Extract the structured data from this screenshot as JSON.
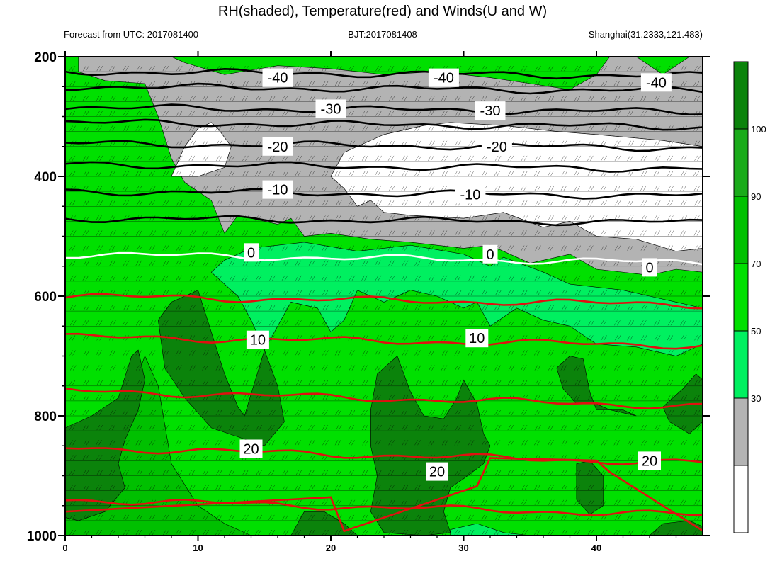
{
  "chart_data": {
    "type": "heatmap",
    "title": "RH(shaded), Temperature(red) and Winds(U and W)",
    "subtitle_left": "Forecast from UTC: 2017081400",
    "subtitle_center": "BJT:2017081408",
    "subtitle_right": "Shanghai(31.2333,121.483)",
    "x_range": [
      0,
      48
    ],
    "x_ticks": [
      0,
      10,
      20,
      30,
      40
    ],
    "y_range": [
      200,
      1000
    ],
    "y_ticks": [
      200,
      400,
      600,
      800,
      1000
    ],
    "y_inverted": true,
    "colorbar": {
      "ticks": [
        30,
        50,
        70,
        90,
        100
      ],
      "colors": [
        "#ffffff",
        "#b3b3b3",
        "#00f060",
        "#00e000",
        "#00c000",
        "#1aab1a",
        "#0b830b"
      ],
      "placement": "right"
    },
    "isotherm_colors": {
      "cold": "#000000",
      "zero": "#ffffff",
      "warm": "#e01010"
    },
    "isotherms": [
      {
        "value": -40,
        "label": "-40",
        "pressure": 225,
        "show_label": true
      },
      {
        "value": -35,
        "label": "",
        "pressure": 250,
        "show_label": false
      },
      {
        "value": -30,
        "label": "-30",
        "pressure": 285,
        "show_label": true
      },
      {
        "value": -25,
        "label": "",
        "pressure": 310,
        "show_label": false
      },
      {
        "value": -20,
        "label": "-20",
        "pressure": 345,
        "show_label": true
      },
      {
        "value": -15,
        "label": "",
        "pressure": 380,
        "show_label": false
      },
      {
        "value": -10,
        "label": "-10",
        "pressure": 425,
        "show_label": true
      },
      {
        "value": -5,
        "label": "",
        "pressure": 470,
        "show_label": false
      },
      {
        "value": 0,
        "label": "0",
        "pressure": 530,
        "show_label": true
      },
      {
        "value": 5,
        "label": "",
        "pressure": 600,
        "show_label": false
      },
      {
        "value": 10,
        "label": "10",
        "pressure": 668,
        "show_label": true
      },
      {
        "value": 15,
        "label": "",
        "pressure": 758,
        "show_label": false
      },
      {
        "value": 20,
        "label": "20",
        "pressure": 853,
        "show_label": true
      },
      {
        "value": 25,
        "label": "",
        "pressure": 940,
        "show_label": false
      }
    ],
    "contour_labels": [
      {
        "text": "-40",
        "x": 16,
        "p": 235
      },
      {
        "text": "-40",
        "x": 28.5,
        "p": 235
      },
      {
        "text": "-40",
        "x": 44.5,
        "p": 243
      },
      {
        "text": "-30",
        "x": 20,
        "p": 287
      },
      {
        "text": "-30",
        "x": 32,
        "p": 290
      },
      {
        "text": "-20",
        "x": 16,
        "p": 350
      },
      {
        "text": "-20",
        "x": 32.5,
        "p": 350
      },
      {
        "text": "-10",
        "x": 16,
        "p": 422
      },
      {
        "text": "-10",
        "x": 30.5,
        "p": 430
      },
      {
        "text": "0",
        "x": 14,
        "p": 527
      },
      {
        "text": "0",
        "x": 32,
        "p": 530
      },
      {
        "text": "0",
        "x": 44,
        "p": 552
      },
      {
        "text": "10",
        "x": 14.5,
        "p": 673
      },
      {
        "text": "10",
        "x": 31,
        "p": 670
      },
      {
        "text": "20",
        "x": 14,
        "p": 855
      },
      {
        "text": "20",
        "x": 28,
        "p": 893
      },
      {
        "text": "20",
        "x": 44,
        "p": 875
      }
    ],
    "rh_regions": [
      {
        "class": "lt30",
        "points": [
          [
            11,
            310
          ],
          [
            11.5,
            320
          ],
          [
            12.5,
            350
          ],
          [
            12,
            385
          ],
          [
            10,
            400
          ],
          [
            8,
            400
          ],
          [
            9,
            350
          ],
          [
            10,
            320
          ]
        ]
      },
      {
        "class": "lt30",
        "points": [
          [
            29,
            310
          ],
          [
            33,
            315
          ],
          [
            37,
            325
          ],
          [
            40,
            330
          ],
          [
            45,
            340
          ],
          [
            48,
            350
          ],
          [
            48,
            520
          ],
          [
            46,
            525
          ],
          [
            43,
            505
          ],
          [
            40,
            500
          ],
          [
            38,
            475
          ],
          [
            36,
            485
          ],
          [
            33,
            460
          ],
          [
            30,
            470
          ],
          [
            26,
            465
          ],
          [
            24,
            460
          ],
          [
            23,
            440
          ],
          [
            22,
            450
          ],
          [
            21,
            420
          ],
          [
            20,
            400
          ],
          [
            21,
            360
          ],
          [
            24,
            330
          ],
          [
            27,
            315
          ]
        ]
      },
      {
        "class": "lt50",
        "points": [
          [
            1,
            200
          ],
          [
            8,
            200
          ],
          [
            9,
            210
          ],
          [
            12,
            230
          ],
          [
            16,
            215
          ],
          [
            20,
            220
          ],
          [
            24,
            230
          ],
          [
            28,
            225
          ],
          [
            32,
            235
          ],
          [
            35,
            245
          ],
          [
            38,
            255
          ],
          [
            40,
            230
          ],
          [
            41,
            200
          ],
          [
            43,
            200
          ],
          [
            45,
            230
          ],
          [
            47,
            200
          ],
          [
            48,
            200
          ],
          [
            48,
            560
          ],
          [
            46,
            555
          ],
          [
            44,
            565
          ],
          [
            40,
            555
          ],
          [
            38,
            530
          ],
          [
            35,
            545
          ],
          [
            32,
            515
          ],
          [
            30,
            520
          ],
          [
            26,
            510
          ],
          [
            23,
            505
          ],
          [
            20,
            495
          ],
          [
            18,
            500
          ],
          [
            17,
            470
          ],
          [
            16,
            480
          ],
          [
            13,
            465
          ],
          [
            12,
            495
          ],
          [
            11,
            440
          ],
          [
            9,
            410
          ],
          [
            8,
            370
          ],
          [
            7,
            300
          ],
          [
            6,
            245
          ],
          [
            3,
            240
          ],
          [
            1,
            225
          ]
        ]
      },
      {
        "class": "lt70",
        "points": [
          [
            14,
            520
          ],
          [
            18,
            510
          ],
          [
            22,
            525
          ],
          [
            26,
            515
          ],
          [
            30,
            530
          ],
          [
            32,
            550
          ],
          [
            33,
            535
          ],
          [
            36,
            560
          ],
          [
            38,
            580
          ],
          [
            42,
            590
          ],
          [
            44,
            600
          ],
          [
            46,
            610
          ],
          [
            48,
            620
          ],
          [
            48,
            680
          ],
          [
            46,
            700
          ],
          [
            43,
            685
          ],
          [
            40,
            680
          ],
          [
            38,
            650
          ],
          [
            36,
            640
          ],
          [
            34,
            620
          ],
          [
            32,
            650
          ],
          [
            31,
            610
          ],
          [
            30,
            620
          ],
          [
            28,
            600
          ],
          [
            26,
            590
          ],
          [
            24,
            610
          ],
          [
            22,
            590
          ],
          [
            21,
            640
          ],
          [
            20,
            660
          ],
          [
            19,
            620
          ],
          [
            17,
            610
          ],
          [
            16,
            650
          ],
          [
            15,
            690
          ],
          [
            14,
            640
          ],
          [
            13,
            600
          ],
          [
            12,
            580
          ],
          [
            11,
            560
          ],
          [
            12,
            540
          ]
        ]
      },
      {
        "class": "lt70",
        "points": [
          [
            29,
            990
          ],
          [
            31,
            980
          ],
          [
            33,
            995
          ],
          [
            35,
            1000
          ],
          [
            29,
            1000
          ]
        ]
      },
      {
        "class": "lt90",
        "points": [
          [
            0,
            200
          ],
          [
            48,
            200
          ],
          [
            48,
            1000
          ],
          [
            0,
            1000
          ]
        ]
      },
      {
        "class": "lt100",
        "points": [
          [
            0,
            840
          ],
          [
            3,
            820
          ],
          [
            5,
            760
          ],
          [
            6,
            700
          ],
          [
            7,
            750
          ],
          [
            8,
            880
          ],
          [
            10,
            950
          ],
          [
            12,
            980
          ],
          [
            14,
            1000
          ],
          [
            0,
            1000
          ]
        ]
      },
      {
        "class": "gt100",
        "points": [
          [
            7,
            640
          ],
          [
            8,
            610
          ],
          [
            10,
            590
          ],
          [
            11,
            660
          ],
          [
            12,
            730
          ],
          [
            13,
            785
          ],
          [
            13.5,
            800
          ],
          [
            15,
            690
          ],
          [
            16,
            750
          ],
          [
            16.5,
            810
          ],
          [
            15,
            850
          ],
          [
            13,
            835
          ],
          [
            11,
            820
          ],
          [
            9,
            770
          ],
          [
            7.5,
            720
          ]
        ]
      },
      {
        "class": "gt100",
        "points": [
          [
            0,
            820
          ],
          [
            2,
            800
          ],
          [
            4,
            770
          ],
          [
            5,
            700
          ],
          [
            5.5,
            690
          ],
          [
            6,
            740
          ],
          [
            5.5,
            790
          ],
          [
            4.5,
            840
          ],
          [
            4,
            880
          ],
          [
            4.5,
            920
          ],
          [
            3,
            960
          ],
          [
            1,
            975
          ],
          [
            0,
            970
          ]
        ]
      },
      {
        "class": "gt100",
        "points": [
          [
            23,
            790
          ],
          [
            23.5,
            730
          ],
          [
            25,
            700
          ],
          [
            26,
            760
          ],
          [
            27,
            800
          ],
          [
            28.5,
            805
          ],
          [
            29.5,
            770
          ],
          [
            30,
            740
          ],
          [
            31,
            780
          ],
          [
            31.5,
            830
          ],
          [
            32,
            850
          ],
          [
            31.5,
            880
          ],
          [
            30,
            905
          ],
          [
            29,
            920
          ],
          [
            28.5,
            960
          ],
          [
            29,
            995
          ],
          [
            27,
            1000
          ],
          [
            24,
            995
          ],
          [
            23,
            960
          ],
          [
            23.5,
            900
          ],
          [
            23,
            850
          ]
        ]
      },
      {
        "class": "gt100",
        "points": [
          [
            37,
            720
          ],
          [
            38,
            700
          ],
          [
            39,
            705
          ],
          [
            39.5,
            760
          ],
          [
            40,
            790
          ],
          [
            42,
            790
          ],
          [
            43,
            800
          ],
          [
            41,
            790
          ],
          [
            40,
            780
          ],
          [
            38.5,
            780
          ],
          [
            37.5,
            755
          ]
        ]
      },
      {
        "class": "gt100",
        "points": [
          [
            38.5,
            880
          ],
          [
            39.5,
            875
          ],
          [
            40.5,
            900
          ],
          [
            40.5,
            950
          ],
          [
            39.5,
            965
          ],
          [
            38.5,
            940
          ],
          [
            38.5,
            900
          ]
        ]
      },
      {
        "class": "gt100",
        "points": [
          [
            45,
            785
          ],
          [
            46.5,
            755
          ],
          [
            47.5,
            730
          ],
          [
            48,
            740
          ],
          [
            48,
            810
          ],
          [
            47,
            830
          ],
          [
            45.5,
            810
          ]
        ]
      },
      {
        "class": "gt100",
        "points": [
          [
            17,
            1000
          ],
          [
            18,
            960
          ],
          [
            19.5,
            960
          ],
          [
            21,
            980
          ],
          [
            22,
            1000
          ]
        ]
      },
      {
        "class": "gt100",
        "points": [
          [
            44,
            1000
          ],
          [
            45,
            980
          ],
          [
            47,
            975
          ],
          [
            48,
            985
          ],
          [
            48,
            1000
          ]
        ]
      }
    ]
  }
}
